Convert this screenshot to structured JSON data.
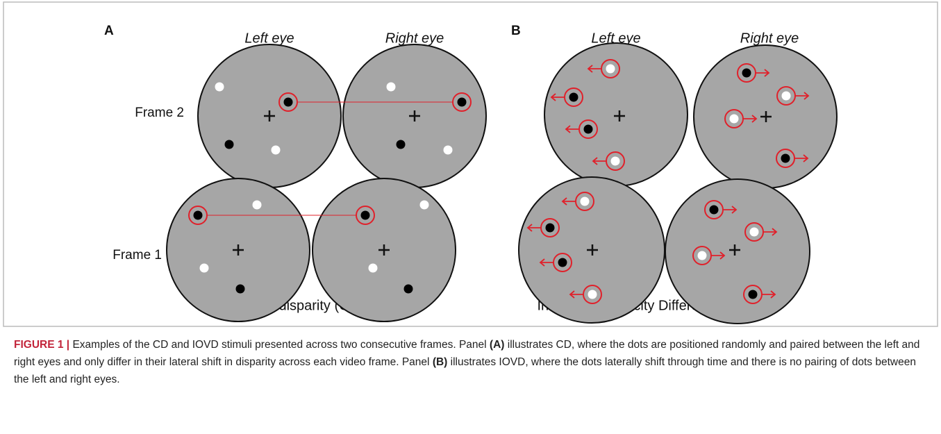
{
  "panels": [
    {
      "label": "A",
      "eye_labels": [
        "Left eye",
        "Right eye"
      ],
      "subtitle": "Changing disparity (CD)"
    },
    {
      "label": "B",
      "eye_labels": [
        "Left eye",
        "Right eye"
      ],
      "subtitle": "Interocular Velocity Difference (IOVD)"
    }
  ],
  "frame_labels": [
    "Frame 2",
    "Frame 1"
  ],
  "caption": {
    "label": "FIGURE 1 |",
    "parts": [
      " Examples of the CD and IOVD stimuli presented across two consecutive frames. Panel ",
      "(A)",
      " illustrates CD, where the dots are positioned randomly and paired between the left and right eyes and only differ in their lateral shift in disparity across each video frame. Panel ",
      "(B)",
      " illustrates IOVD, where the dots laterally shift through time and there is no pairing of dots between the left and right eyes."
    ]
  }
}
